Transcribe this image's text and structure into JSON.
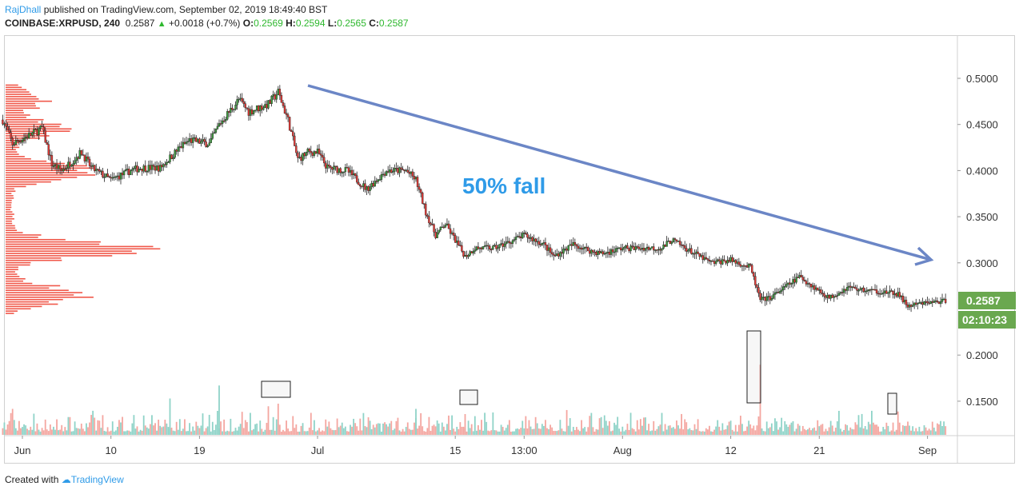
{
  "header": {
    "author": "RajDhall",
    "published": "published on TradingView.com, September 02, 2019 18:49:40 BST"
  },
  "ticker": {
    "symbol": "COINBASE:XRPUSD, 240",
    "last": "0.2587",
    "change": "+0.0018 (+0.7%)",
    "o_label": "O:",
    "o": "0.2569",
    "h_label": "H:",
    "h": "0.2594",
    "l_label": "L:",
    "l": "0.2565",
    "c_label": "C:",
    "c": "0.2587"
  },
  "price_tag": {
    "value": "0.2587",
    "countdown": "02:10:23",
    "color": "#6aa84f"
  },
  "annotation": {
    "text": "50% fall",
    "color": "#2f9be8",
    "arrow_color": "#6b86c6"
  },
  "footer": {
    "prefix": "Created with",
    "brand": "TradingView"
  },
  "colors": {
    "up": "#3c9a3c",
    "down": "#e53935",
    "vol_up": "#8fd3c8",
    "vol_down": "#f4a6a0",
    "profile": "#f0584a"
  },
  "chart_data": {
    "type": "candlestick",
    "interval": "240",
    "year": 2019,
    "ylim": [
      0.11,
      0.53
    ],
    "yticks": [
      0.5,
      0.45,
      0.4,
      0.35,
      0.3,
      0.25,
      0.2,
      0.15
    ],
    "ytick_labels": [
      "0.5000",
      "0.4500",
      "0.4000",
      "0.3500",
      "0.3000",
      "0.2500",
      "0.2000",
      "0.1500"
    ],
    "x_range": [
      "2019-05-30",
      "2019-09-03"
    ],
    "xticks": [
      {
        "date": "2019-06-01",
        "label": "Jun"
      },
      {
        "date": "2019-06-10",
        "label": "10"
      },
      {
        "date": "2019-06-19",
        "label": "19"
      },
      {
        "date": "2019-07-01",
        "label": "Jul"
      },
      {
        "date": "2019-07-15",
        "label": "15"
      },
      {
        "date": "2019-07-22",
        "label": "13:00"
      },
      {
        "date": "2019-08-01",
        "label": "Aug"
      },
      {
        "date": "2019-08-12",
        "label": "12"
      },
      {
        "date": "2019-08-21",
        "label": "21"
      },
      {
        "date": "2019-09-01",
        "label": "Sep"
      }
    ],
    "close_path": [
      [
        "2019-05-30",
        0.455
      ],
      [
        "2019-05-31",
        0.429
      ],
      [
        "2019-06-02",
        0.44
      ],
      [
        "2019-06-03",
        0.446
      ],
      [
        "2019-06-04",
        0.407
      ],
      [
        "2019-06-05",
        0.4
      ],
      [
        "2019-06-07",
        0.42
      ],
      [
        "2019-06-08",
        0.403
      ],
      [
        "2019-06-10",
        0.39
      ],
      [
        "2019-06-12",
        0.4
      ],
      [
        "2019-06-13",
        0.403
      ],
      [
        "2019-06-15",
        0.403
      ],
      [
        "2019-06-17",
        0.425
      ],
      [
        "2019-06-18",
        0.433
      ],
      [
        "2019-06-20",
        0.429
      ],
      [
        "2019-06-21",
        0.45
      ],
      [
        "2019-06-23",
        0.477
      ],
      [
        "2019-06-24",
        0.464
      ],
      [
        "2019-06-26",
        0.472
      ],
      [
        "2019-06-27",
        0.485
      ],
      [
        "2019-06-28",
        0.455
      ],
      [
        "2019-06-29",
        0.412
      ],
      [
        "2019-06-30",
        0.42
      ],
      [
        "2019-07-01",
        0.42
      ],
      [
        "2019-07-02",
        0.403
      ],
      [
        "2019-07-04",
        0.4
      ],
      [
        "2019-07-06",
        0.38
      ],
      [
        "2019-07-08",
        0.4
      ],
      [
        "2019-07-10",
        0.4
      ],
      [
        "2019-07-11",
        0.39
      ],
      [
        "2019-07-12",
        0.355
      ],
      [
        "2019-07-13",
        0.33
      ],
      [
        "2019-07-14",
        0.342
      ],
      [
        "2019-07-16",
        0.307
      ],
      [
        "2019-07-17",
        0.316
      ],
      [
        "2019-07-19",
        0.316
      ],
      [
        "2019-07-21",
        0.325
      ],
      [
        "2019-07-22",
        0.33
      ],
      [
        "2019-07-24",
        0.32
      ],
      [
        "2019-07-25",
        0.307
      ],
      [
        "2019-07-27",
        0.32
      ],
      [
        "2019-07-29",
        0.312
      ],
      [
        "2019-07-30",
        0.31
      ],
      [
        "2019-08-01",
        0.316
      ],
      [
        "2019-08-03",
        0.316
      ],
      [
        "2019-08-05",
        0.316
      ],
      [
        "2019-08-06",
        0.325
      ],
      [
        "2019-08-08",
        0.312
      ],
      [
        "2019-08-10",
        0.3
      ],
      [
        "2019-08-12",
        0.303
      ],
      [
        "2019-08-14",
        0.295
      ],
      [
        "2019-08-15",
        0.26
      ],
      [
        "2019-08-16",
        0.262
      ],
      [
        "2019-08-19",
        0.285
      ],
      [
        "2019-08-20",
        0.277
      ],
      [
        "2019-08-22",
        0.262
      ],
      [
        "2019-08-24",
        0.274
      ],
      [
        "2019-08-25",
        0.271
      ],
      [
        "2019-08-27",
        0.269
      ],
      [
        "2019-08-29",
        0.266
      ],
      [
        "2019-08-30",
        0.253
      ],
      [
        "2019-09-01",
        0.257
      ],
      [
        "2019-09-03",
        0.2587
      ]
    ],
    "volume_spikes": [
      [
        "2019-06-21",
        0.95,
        "up"
      ],
      [
        "2019-06-16",
        0.7,
        "up"
      ],
      [
        "2019-06-26",
        0.55,
        "down"
      ],
      [
        "2019-06-27",
        0.6,
        "down"
      ],
      [
        "2019-07-11",
        0.5,
        "up"
      ],
      [
        "2019-07-16",
        0.4,
        "down"
      ],
      [
        "2019-08-15",
        1.35,
        "down"
      ],
      [
        "2019-08-29",
        0.45,
        "down"
      ],
      [
        "2019-05-31",
        0.5,
        "down"
      ]
    ],
    "volume_profile_peaks": [
      [
        0.4,
        1.0
      ],
      [
        0.445,
        0.6
      ],
      [
        0.315,
        1.35
      ],
      [
        0.265,
        0.92
      ],
      [
        0.475,
        0.35
      ]
    ]
  }
}
